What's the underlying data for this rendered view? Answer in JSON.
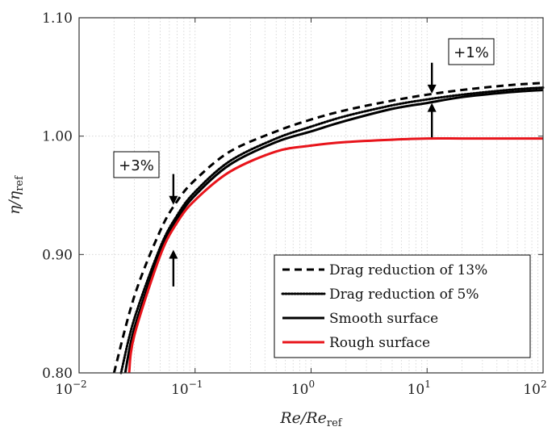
{
  "chart_data": {
    "type": "line",
    "xscale": "log",
    "xlim": [
      0.01,
      100
    ],
    "ylim": [
      0.8,
      1.1
    ],
    "xlabel": "Re/Re",
    "xlabel_sub": "ref",
    "ylabel": "η/η",
    "ylabel_sub": "ref",
    "x_ticks": [
      {
        "base": "10",
        "exp": "−2"
      },
      {
        "base": "10",
        "exp": "−1"
      },
      {
        "base": "10",
        "exp": "0"
      },
      {
        "base": "10",
        "exp": "1"
      },
      {
        "base": "10",
        "exp": "2"
      }
    ],
    "y_ticks": [
      "0.80",
      "0.90",
      "1.00",
      "1.10"
    ],
    "grid": true,
    "legend_position": "bottom-right",
    "series": [
      {
        "name": "Drag reduction of 13%",
        "color": "#000000",
        "style": "dashed",
        "x": [
          0.02,
          0.03,
          0.05,
          0.07,
          0.1,
          0.2,
          0.5,
          1,
          2,
          5,
          10,
          20,
          50,
          100
        ],
        "y": [
          0.8,
          0.865,
          0.92,
          0.945,
          0.963,
          0.987,
          1.004,
          1.014,
          1.022,
          1.03,
          1.035,
          1.039,
          1.043,
          1.045
        ]
      },
      {
        "name": "Drag reduction of 5%",
        "color": "#000000",
        "style": "dotted",
        "x": [
          0.023,
          0.03,
          0.05,
          0.07,
          0.1,
          0.2,
          0.5,
          1,
          2,
          5,
          10,
          20,
          50,
          100
        ],
        "y": [
          0.8,
          0.846,
          0.906,
          0.933,
          0.953,
          0.979,
          0.998,
          1.008,
          1.017,
          1.026,
          1.031,
          1.035,
          1.039,
          1.041
        ]
      },
      {
        "name": "Smooth surface",
        "color": "#000000",
        "style": "solid",
        "x": [
          0.025,
          0.03,
          0.05,
          0.07,
          0.1,
          0.2,
          0.5,
          1,
          2,
          5,
          10,
          20,
          50,
          100
        ],
        "y": [
          0.8,
          0.838,
          0.902,
          0.93,
          0.95,
          0.976,
          0.995,
          1.004,
          1.013,
          1.023,
          1.028,
          1.033,
          1.037,
          1.039
        ]
      },
      {
        "name": "Rough surface",
        "color": "#e8141b",
        "style": "solid",
        "x": [
          0.027,
          0.03,
          0.05,
          0.07,
          0.1,
          0.2,
          0.5,
          1,
          2,
          5,
          10,
          20,
          50,
          100
        ],
        "y": [
          0.8,
          0.832,
          0.899,
          0.927,
          0.946,
          0.97,
          0.987,
          0.992,
          0.995,
          0.997,
          0.998,
          0.998,
          0.998,
          0.998
        ]
      }
    ],
    "annotations": [
      {
        "text": "+1%",
        "x": 11,
        "arrow_down_from": 1.062,
        "arrow_down_to": 1.036,
        "arrow_up_from": 0.999,
        "arrow_up_to": 1.028
      },
      {
        "text": "+3%",
        "x": 0.065,
        "arrow_down_from": 0.968,
        "arrow_down_to": 0.942,
        "arrow_up_from": 0.873,
        "arrow_up_to": 0.904
      }
    ]
  }
}
